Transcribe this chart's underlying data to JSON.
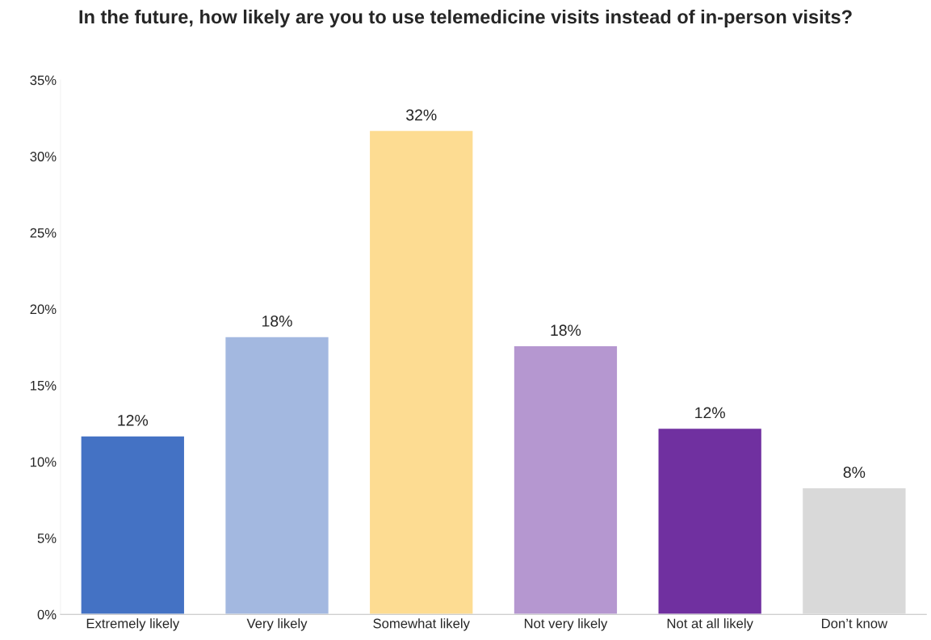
{
  "chart_data": {
    "type": "bar",
    "title": "In the future, how likely are you to use telemedicine visits instead of in-person visits?",
    "categories": [
      "Extremely likely",
      "Very likely",
      "Somewhat likely",
      "Not very likely",
      "Not at all likely",
      "Don’t know"
    ],
    "values": [
      11.7,
      18.2,
      31.7,
      17.6,
      12.2,
      8.3
    ],
    "value_labels": [
      "12%",
      "18%",
      "32%",
      "18%",
      "12%",
      "8%"
    ],
    "colors": [
      "#4472c4",
      "#a3b8e0",
      "#fddc92",
      "#b597d0",
      "#7030a0",
      "#d9d9d9"
    ],
    "ylim": [
      0,
      35
    ],
    "yticks": [
      {
        "value": 0,
        "label": "0%"
      },
      {
        "value": 5,
        "label": "5%"
      },
      {
        "value": 10,
        "label": "10%"
      },
      {
        "value": 15,
        "label": "15%"
      },
      {
        "value": 20,
        "label": "20%"
      },
      {
        "value": 25,
        "label": "25%"
      },
      {
        "value": 30,
        "label": "30%"
      },
      {
        "value": 35,
        "label": "35%"
      }
    ],
    "grid": false
  }
}
